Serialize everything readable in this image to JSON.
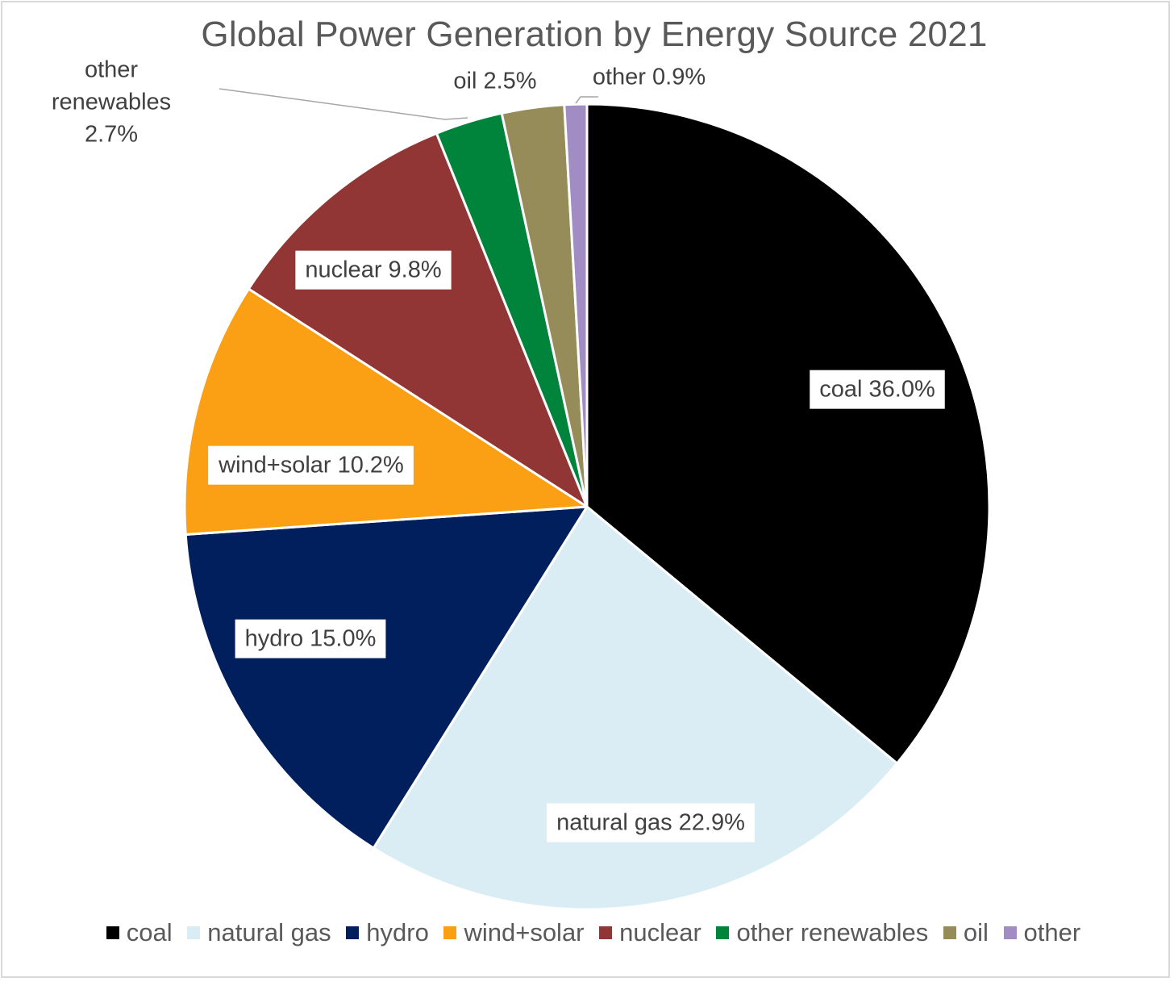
{
  "chart_data": {
    "type": "pie",
    "title": "Global Power Generation by Energy Source 2021",
    "slices": [
      {
        "name": "coal",
        "value": 36.0,
        "color": "#000000",
        "label": "coal 36.0%",
        "label_style": "boxed"
      },
      {
        "name": "natural gas",
        "value": 22.9,
        "color": "#daedf4",
        "label": "natural gas 22.9%",
        "label_style": "boxed"
      },
      {
        "name": "hydro",
        "value": 15.0,
        "color": "#001f5c",
        "label": "hydro 15.0%",
        "label_style": "boxed"
      },
      {
        "name": "wind+solar",
        "value": 10.2,
        "color": "#fb9f14",
        "label": "wind+solar 10.2%",
        "label_style": "boxed"
      },
      {
        "name": "nuclear",
        "value": 9.8,
        "color": "#923635",
        "label": "nuclear 9.8%",
        "label_style": "boxed"
      },
      {
        "name": "other renewables",
        "value": 2.7,
        "color": "#00833b",
        "label_lines": [
          "other",
          "renewables",
          "2.7%"
        ],
        "label_style": "callout"
      },
      {
        "name": "oil",
        "value": 2.5,
        "color": "#968c59",
        "label": "oil 2.5%",
        "label_style": "outside"
      },
      {
        "name": "other",
        "value": 0.9,
        "color": "#a18cc3",
        "label": "other 0.9%",
        "label_style": "callout"
      }
    ],
    "start_angle": "12 o'clock",
    "direction": "clockwise",
    "legend": {
      "position": "bottom"
    }
  }
}
